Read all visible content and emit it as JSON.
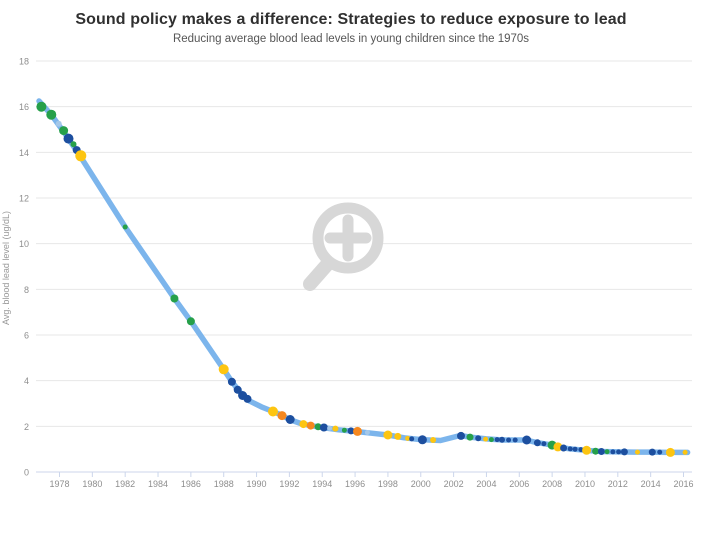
{
  "chart_data": {
    "type": "line",
    "title": "Sound policy makes a difference: Strategies to reduce exposure to lead",
    "subtitle": "Reducing average blood lead levels in young children since the 1970s",
    "xlabel": "",
    "ylabel": "Avg. blood lead level (ug/dL)",
    "xlim": [
      1976.6,
      2016.5
    ],
    "ylim": [
      0,
      18
    ],
    "xticks": [
      1978,
      1980,
      1982,
      1984,
      1986,
      1988,
      1990,
      1992,
      1994,
      1996,
      1998,
      2000,
      2002,
      2004,
      2006,
      2008,
      2010,
      2012,
      2014,
      2016
    ],
    "yticks": [
      0,
      2,
      4,
      6,
      8,
      10,
      12,
      14,
      16,
      18
    ],
    "grid": "horizontal",
    "legend": "none",
    "colors": {
      "line": "#7cb5ec",
      "green": "#26a04a",
      "navy": "#1d4f9f",
      "yellow": "#fdc511",
      "orange": "#f6881f",
      "lightblue": "#a5c8e9",
      "grid": "#e7e7e7",
      "axis": "#ccd6eb",
      "tick_text": "#8e8e8e",
      "axis_title_text": "#999999",
      "watermark": "#d7d7d7"
    },
    "line_points": [
      [
        1976.75,
        16.25
      ],
      [
        1977.5,
        15.65
      ],
      [
        1978.2,
        14.95
      ],
      [
        1979.2,
        13.9
      ],
      [
        1982.0,
        10.73
      ],
      [
        1985.0,
        7.6
      ],
      [
        1986.0,
        6.6
      ],
      [
        1988.0,
        4.5
      ],
      [
        1988.5,
        3.95
      ],
      [
        1989.1,
        3.4
      ],
      [
        1989.6,
        3.1
      ],
      [
        1990.3,
        2.85
      ],
      [
        1991.0,
        2.65
      ],
      [
        1991.5,
        2.5
      ],
      [
        1992.0,
        2.3
      ],
      [
        1992.8,
        2.1
      ],
      [
        1993.3,
        2.03
      ],
      [
        1994.0,
        1.95
      ],
      [
        1995.0,
        1.85
      ],
      [
        1996.0,
        1.78
      ],
      [
        1997.0,
        1.7
      ],
      [
        1998.0,
        1.62
      ],
      [
        1999.0,
        1.5
      ],
      [
        2000.0,
        1.42
      ],
      [
        2001.2,
        1.38
      ],
      [
        2002.4,
        1.6
      ],
      [
        2003.0,
        1.53
      ],
      [
        2004.0,
        1.45
      ],
      [
        2005.0,
        1.4
      ],
      [
        2006.4,
        1.4
      ],
      [
        2007.0,
        1.3
      ],
      [
        2008.0,
        1.18
      ],
      [
        2008.5,
        1.08
      ],
      [
        2009.0,
        1.02
      ],
      [
        2010.0,
        0.95
      ],
      [
        2011.0,
        0.9
      ],
      [
        2012.0,
        0.88
      ],
      [
        2013.0,
        0.87
      ],
      [
        2014.0,
        0.87
      ],
      [
        2015.0,
        0.86
      ],
      [
        2016.25,
        0.86
      ]
    ],
    "markers": [
      [
        1976.9,
        16.0,
        "green",
        5
      ],
      [
        1977.5,
        15.65,
        "green",
        5
      ],
      [
        1977.95,
        15.25,
        "lightblue",
        3
      ],
      [
        1978.25,
        14.95,
        "green",
        4.5
      ],
      [
        1978.55,
        14.6,
        "navy",
        5
      ],
      [
        1978.85,
        14.35,
        "green",
        3
      ],
      [
        1979.05,
        14.1,
        "navy",
        4
      ],
      [
        1979.3,
        13.85,
        "yellow",
        5.5
      ],
      [
        1982.0,
        10.73,
        "green",
        2.5
      ],
      [
        1985.0,
        7.6,
        "green",
        4
      ],
      [
        1986.0,
        6.6,
        "green",
        4
      ],
      [
        1988.0,
        4.5,
        "yellow",
        5
      ],
      [
        1988.5,
        3.95,
        "navy",
        4
      ],
      [
        1988.85,
        3.6,
        "navy",
        4
      ],
      [
        1989.15,
        3.35,
        "navy",
        4.5
      ],
      [
        1989.45,
        3.2,
        "navy",
        4
      ],
      [
        1991.0,
        2.65,
        "yellow",
        5
      ],
      [
        1991.55,
        2.47,
        "orange",
        4.5
      ],
      [
        1992.05,
        2.3,
        "navy",
        4.5
      ],
      [
        1992.85,
        2.1,
        "yellow",
        4
      ],
      [
        1993.3,
        2.03,
        "orange",
        4
      ],
      [
        1993.75,
        1.98,
        "green",
        3.5
      ],
      [
        1994.1,
        1.95,
        "navy",
        4
      ],
      [
        1994.45,
        1.92,
        "lightblue",
        2.5
      ],
      [
        1994.8,
        1.9,
        "yellow",
        3
      ],
      [
        1995.35,
        1.83,
        "green",
        2.5
      ],
      [
        1995.75,
        1.8,
        "navy",
        3.5
      ],
      [
        1996.15,
        1.78,
        "orange",
        4.5
      ],
      [
        1996.75,
        1.73,
        "lightblue",
        2.5
      ],
      [
        1998.0,
        1.62,
        "yellow",
        4.5
      ],
      [
        1998.6,
        1.56,
        "yellow",
        3.5
      ],
      [
        1999.2,
        1.47,
        "yellow",
        2.5
      ],
      [
        1999.45,
        1.45,
        "navy",
        2.5
      ],
      [
        2000.1,
        1.41,
        "navy",
        4.5
      ],
      [
        2000.75,
        1.4,
        "yellow",
        3
      ],
      [
        2002.45,
        1.58,
        "navy",
        4
      ],
      [
        2003.0,
        1.53,
        "green",
        3.5
      ],
      [
        2003.5,
        1.48,
        "navy",
        3
      ],
      [
        2003.95,
        1.44,
        "yellow",
        2.5
      ],
      [
        2004.3,
        1.42,
        "green",
        2.5
      ],
      [
        2004.65,
        1.42,
        "navy",
        2.5
      ],
      [
        2004.95,
        1.41,
        "navy",
        3
      ],
      [
        2005.35,
        1.4,
        "navy",
        2.5
      ],
      [
        2005.75,
        1.4,
        "navy",
        2.5
      ],
      [
        2006.45,
        1.4,
        "navy",
        4.5
      ],
      [
        2007.1,
        1.28,
        "navy",
        3.5
      ],
      [
        2007.5,
        1.24,
        "navy",
        2.5
      ],
      [
        2008.0,
        1.18,
        "green",
        4.5
      ],
      [
        2008.35,
        1.1,
        "yellow",
        4.5
      ],
      [
        2008.7,
        1.05,
        "navy",
        3.5
      ],
      [
        2009.1,
        1.01,
        "navy",
        2.5
      ],
      [
        2009.4,
        1.0,
        "navy",
        2.5
      ],
      [
        2009.75,
        0.98,
        "navy",
        2.5
      ],
      [
        2010.1,
        0.95,
        "yellow",
        4.5
      ],
      [
        2010.65,
        0.91,
        "green",
        3.5
      ],
      [
        2011.0,
        0.9,
        "navy",
        3.5
      ],
      [
        2011.35,
        0.89,
        "green",
        2.5
      ],
      [
        2011.7,
        0.88,
        "navy",
        2.5
      ],
      [
        2012.05,
        0.88,
        "navy",
        2.5
      ],
      [
        2012.4,
        0.88,
        "navy",
        3.5
      ],
      [
        2013.2,
        0.87,
        "yellow",
        2.5
      ],
      [
        2014.1,
        0.87,
        "navy",
        3.5
      ],
      [
        2014.55,
        0.87,
        "navy",
        2.5
      ],
      [
        2015.2,
        0.86,
        "yellow",
        4.5
      ],
      [
        2016.1,
        0.86,
        "yellow",
        2.5
      ]
    ]
  }
}
